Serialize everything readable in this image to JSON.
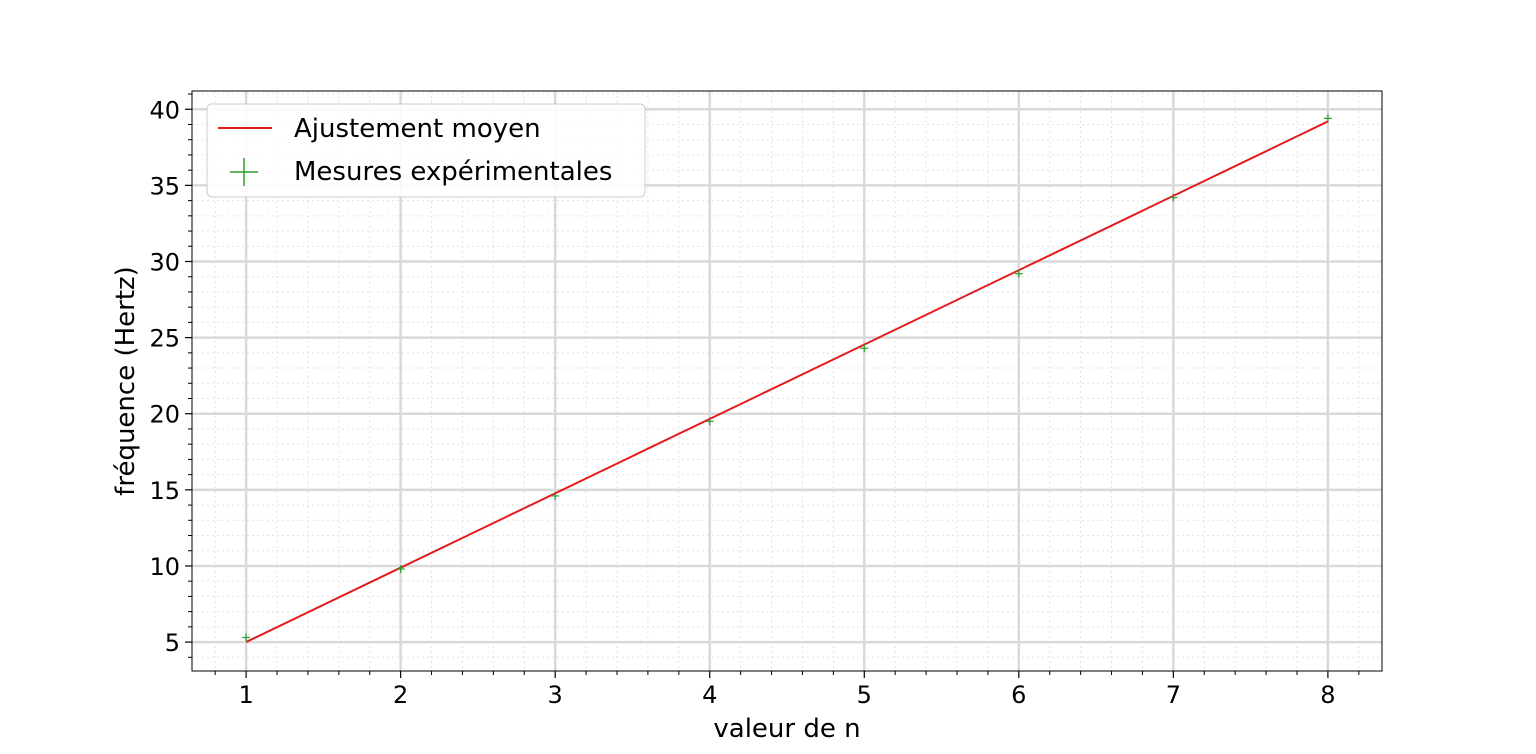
{
  "chart_data": {
    "type": "line",
    "title": "",
    "xlabel": "valeur de n",
    "ylabel": "fréquence (Hertz)",
    "xlim": [
      0.65,
      8.35
    ],
    "ylim": [
      3.1,
      41.2
    ],
    "x_ticks": [
      1,
      2,
      3,
      4,
      5,
      6,
      7,
      8
    ],
    "y_ticks": [
      5,
      10,
      15,
      20,
      25,
      30,
      35,
      40
    ],
    "grid": true,
    "minor_grid": true,
    "legend_position": "top-left",
    "series": [
      {
        "name": "Ajustement moyen",
        "kind": "line",
        "color": "#e41a1c",
        "x": [
          1,
          8
        ],
        "y": [
          5.0,
          39.2
        ]
      },
      {
        "name": "Mesures expérimentales",
        "kind": "scatter",
        "marker": "plus",
        "color": "#2ca02c",
        "x": [
          1,
          2,
          3,
          4,
          5,
          6,
          7,
          8
        ],
        "y": [
          5.3,
          9.8,
          14.6,
          19.5,
          24.3,
          29.2,
          34.2,
          39.4
        ]
      }
    ]
  }
}
